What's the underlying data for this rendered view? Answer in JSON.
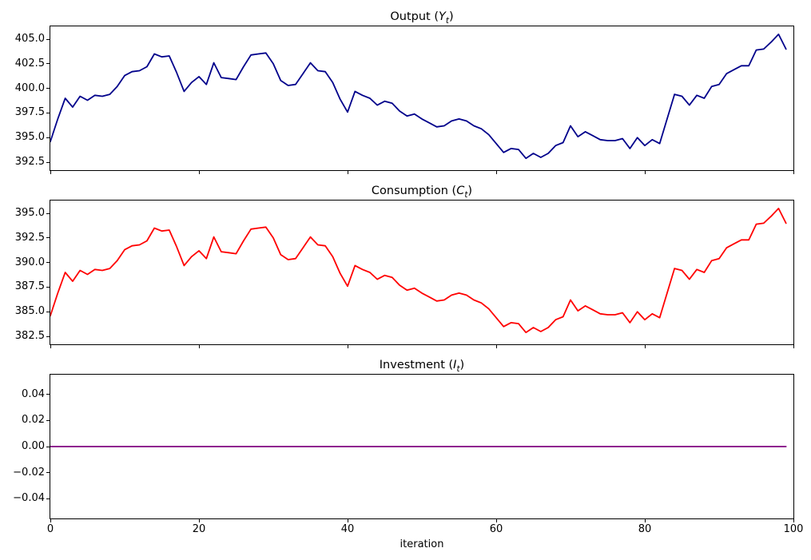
{
  "figure": {
    "background": "#ffffff",
    "xlabel": "iteration",
    "xlim": [
      0,
      100
    ],
    "x_tick_values": [
      0,
      20,
      40,
      60,
      80,
      100
    ],
    "x_tick_labels": [
      "0",
      "20",
      "40",
      "60",
      "80",
      "100"
    ]
  },
  "chart_data": [
    {
      "type": "line",
      "series_name": "output-line",
      "title": {
        "prefix": "Output (",
        "variable": "Y",
        "subscript": "t",
        "suffix": ")"
      },
      "color": "#00008b",
      "x_start": 0,
      "x_step": 1,
      "ylim": [
        391.7,
        406.3
      ],
      "y_tick_values": [
        405.0,
        402.5,
        400.0,
        397.5,
        395.0,
        392.5
      ],
      "y_tick_labels": [
        "405.0",
        "402.5",
        "400.0",
        "397.5",
        "395.0",
        "392.5"
      ],
      "grid": false,
      "values": [
        394.6,
        396.9,
        399.0,
        398.1,
        399.2,
        398.8,
        399.3,
        399.2,
        399.4,
        400.2,
        401.3,
        401.7,
        401.8,
        402.2,
        403.5,
        403.2,
        403.3,
        401.6,
        399.7,
        400.6,
        401.2,
        400.4,
        402.6,
        401.1,
        401.0,
        400.9,
        402.2,
        403.4,
        403.5,
        403.6,
        402.5,
        400.8,
        400.3,
        400.4,
        401.5,
        402.6,
        401.8,
        401.7,
        400.6,
        398.9,
        397.6,
        399.7,
        399.3,
        399.0,
        398.3,
        398.7,
        398.5,
        397.7,
        397.2,
        397.4,
        396.9,
        396.5,
        396.1,
        396.2,
        396.7,
        396.9,
        396.7,
        396.2,
        395.9,
        395.3,
        394.4,
        393.5,
        393.9,
        393.8,
        392.9,
        393.4,
        393.0,
        393.4,
        394.2,
        394.5,
        396.2,
        395.1,
        395.6,
        395.2,
        394.8,
        394.7,
        394.7,
        394.9,
        393.9,
        395.0,
        394.2,
        394.8,
        394.4,
        396.9,
        399.4,
        399.2,
        398.3,
        399.3,
        399.0,
        400.2,
        400.4,
        401.5,
        401.9,
        402.3,
        402.3,
        403.9,
        404.0,
        404.7,
        405.5,
        404.0
      ]
    },
    {
      "type": "line",
      "series_name": "consumption-line",
      "title": {
        "prefix": "Consumption (",
        "variable": "C",
        "subscript": "t",
        "suffix": ")"
      },
      "color": "#ff0000",
      "x_start": 0,
      "x_step": 1,
      "ylim": [
        381.7,
        396.3
      ],
      "y_tick_values": [
        395.0,
        392.5,
        390.0,
        387.5,
        385.0,
        382.5
      ],
      "y_tick_labels": [
        "395.0",
        "392.5",
        "390.0",
        "387.5",
        "385.0",
        "382.5"
      ],
      "grid": false,
      "values": [
        384.6,
        386.9,
        389.0,
        388.1,
        389.2,
        388.8,
        389.3,
        389.2,
        389.4,
        390.2,
        391.3,
        391.7,
        391.8,
        392.2,
        393.5,
        393.2,
        393.3,
        391.6,
        389.7,
        390.6,
        391.2,
        390.4,
        392.6,
        391.1,
        391.0,
        390.9,
        392.2,
        393.4,
        393.5,
        393.6,
        392.5,
        390.8,
        390.3,
        390.4,
        391.5,
        392.6,
        391.8,
        391.7,
        390.6,
        388.9,
        387.6,
        389.7,
        389.3,
        389.0,
        388.3,
        388.7,
        388.5,
        387.7,
        387.2,
        387.4,
        386.9,
        386.5,
        386.1,
        386.2,
        386.7,
        386.9,
        386.7,
        386.2,
        385.9,
        385.3,
        384.4,
        383.5,
        383.9,
        383.8,
        382.9,
        383.4,
        383.0,
        383.4,
        384.2,
        384.5,
        386.2,
        385.1,
        385.6,
        385.2,
        384.8,
        384.7,
        384.7,
        384.9,
        383.9,
        385.0,
        384.2,
        384.8,
        384.4,
        386.9,
        389.4,
        389.2,
        388.3,
        389.3,
        389.0,
        390.2,
        390.4,
        391.5,
        391.9,
        392.3,
        392.3,
        393.9,
        394.0,
        394.7,
        395.5,
        394.0
      ]
    },
    {
      "type": "line",
      "series_name": "investment-line",
      "title": {
        "prefix": "Investment (",
        "variable": "I",
        "subscript": "t",
        "suffix": ")"
      },
      "color": "#800080",
      "x_start": 0,
      "x_step": 1,
      "ylim": [
        -0.055,
        0.055
      ],
      "y_tick_values": [
        0.04,
        0.02,
        0.0,
        -0.02,
        -0.04
      ],
      "y_tick_labels": [
        "0.04",
        "0.02",
        "0.00",
        "−0.02",
        "−0.04"
      ],
      "grid": false,
      "constant_value": 0.0,
      "n_points": 100
    }
  ]
}
